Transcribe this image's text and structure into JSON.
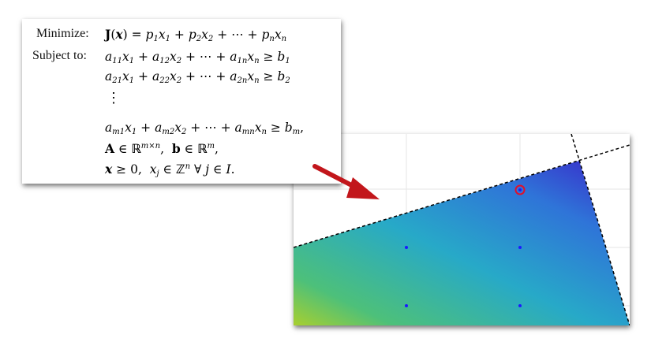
{
  "formula": {
    "minimize_label": "Minimize:",
    "subject_to_label": "Subject to:",
    "vdots": "⋮"
  },
  "plot": {
    "feasible_points": [
      [
        0,
        0
      ],
      [
        1,
        0
      ],
      [
        0,
        1
      ],
      [
        1,
        1
      ]
    ],
    "optimal_point": [
      1,
      1.6
    ],
    "colors": {
      "gradient_top_right": "#3a2fd2",
      "gradient_mid": "#2fa0d8",
      "gradient_bottom_left": "#9ccd3a",
      "point": "#1a1aff",
      "optimal_marker": "#e0102a",
      "arrow": "#c2161b"
    }
  }
}
